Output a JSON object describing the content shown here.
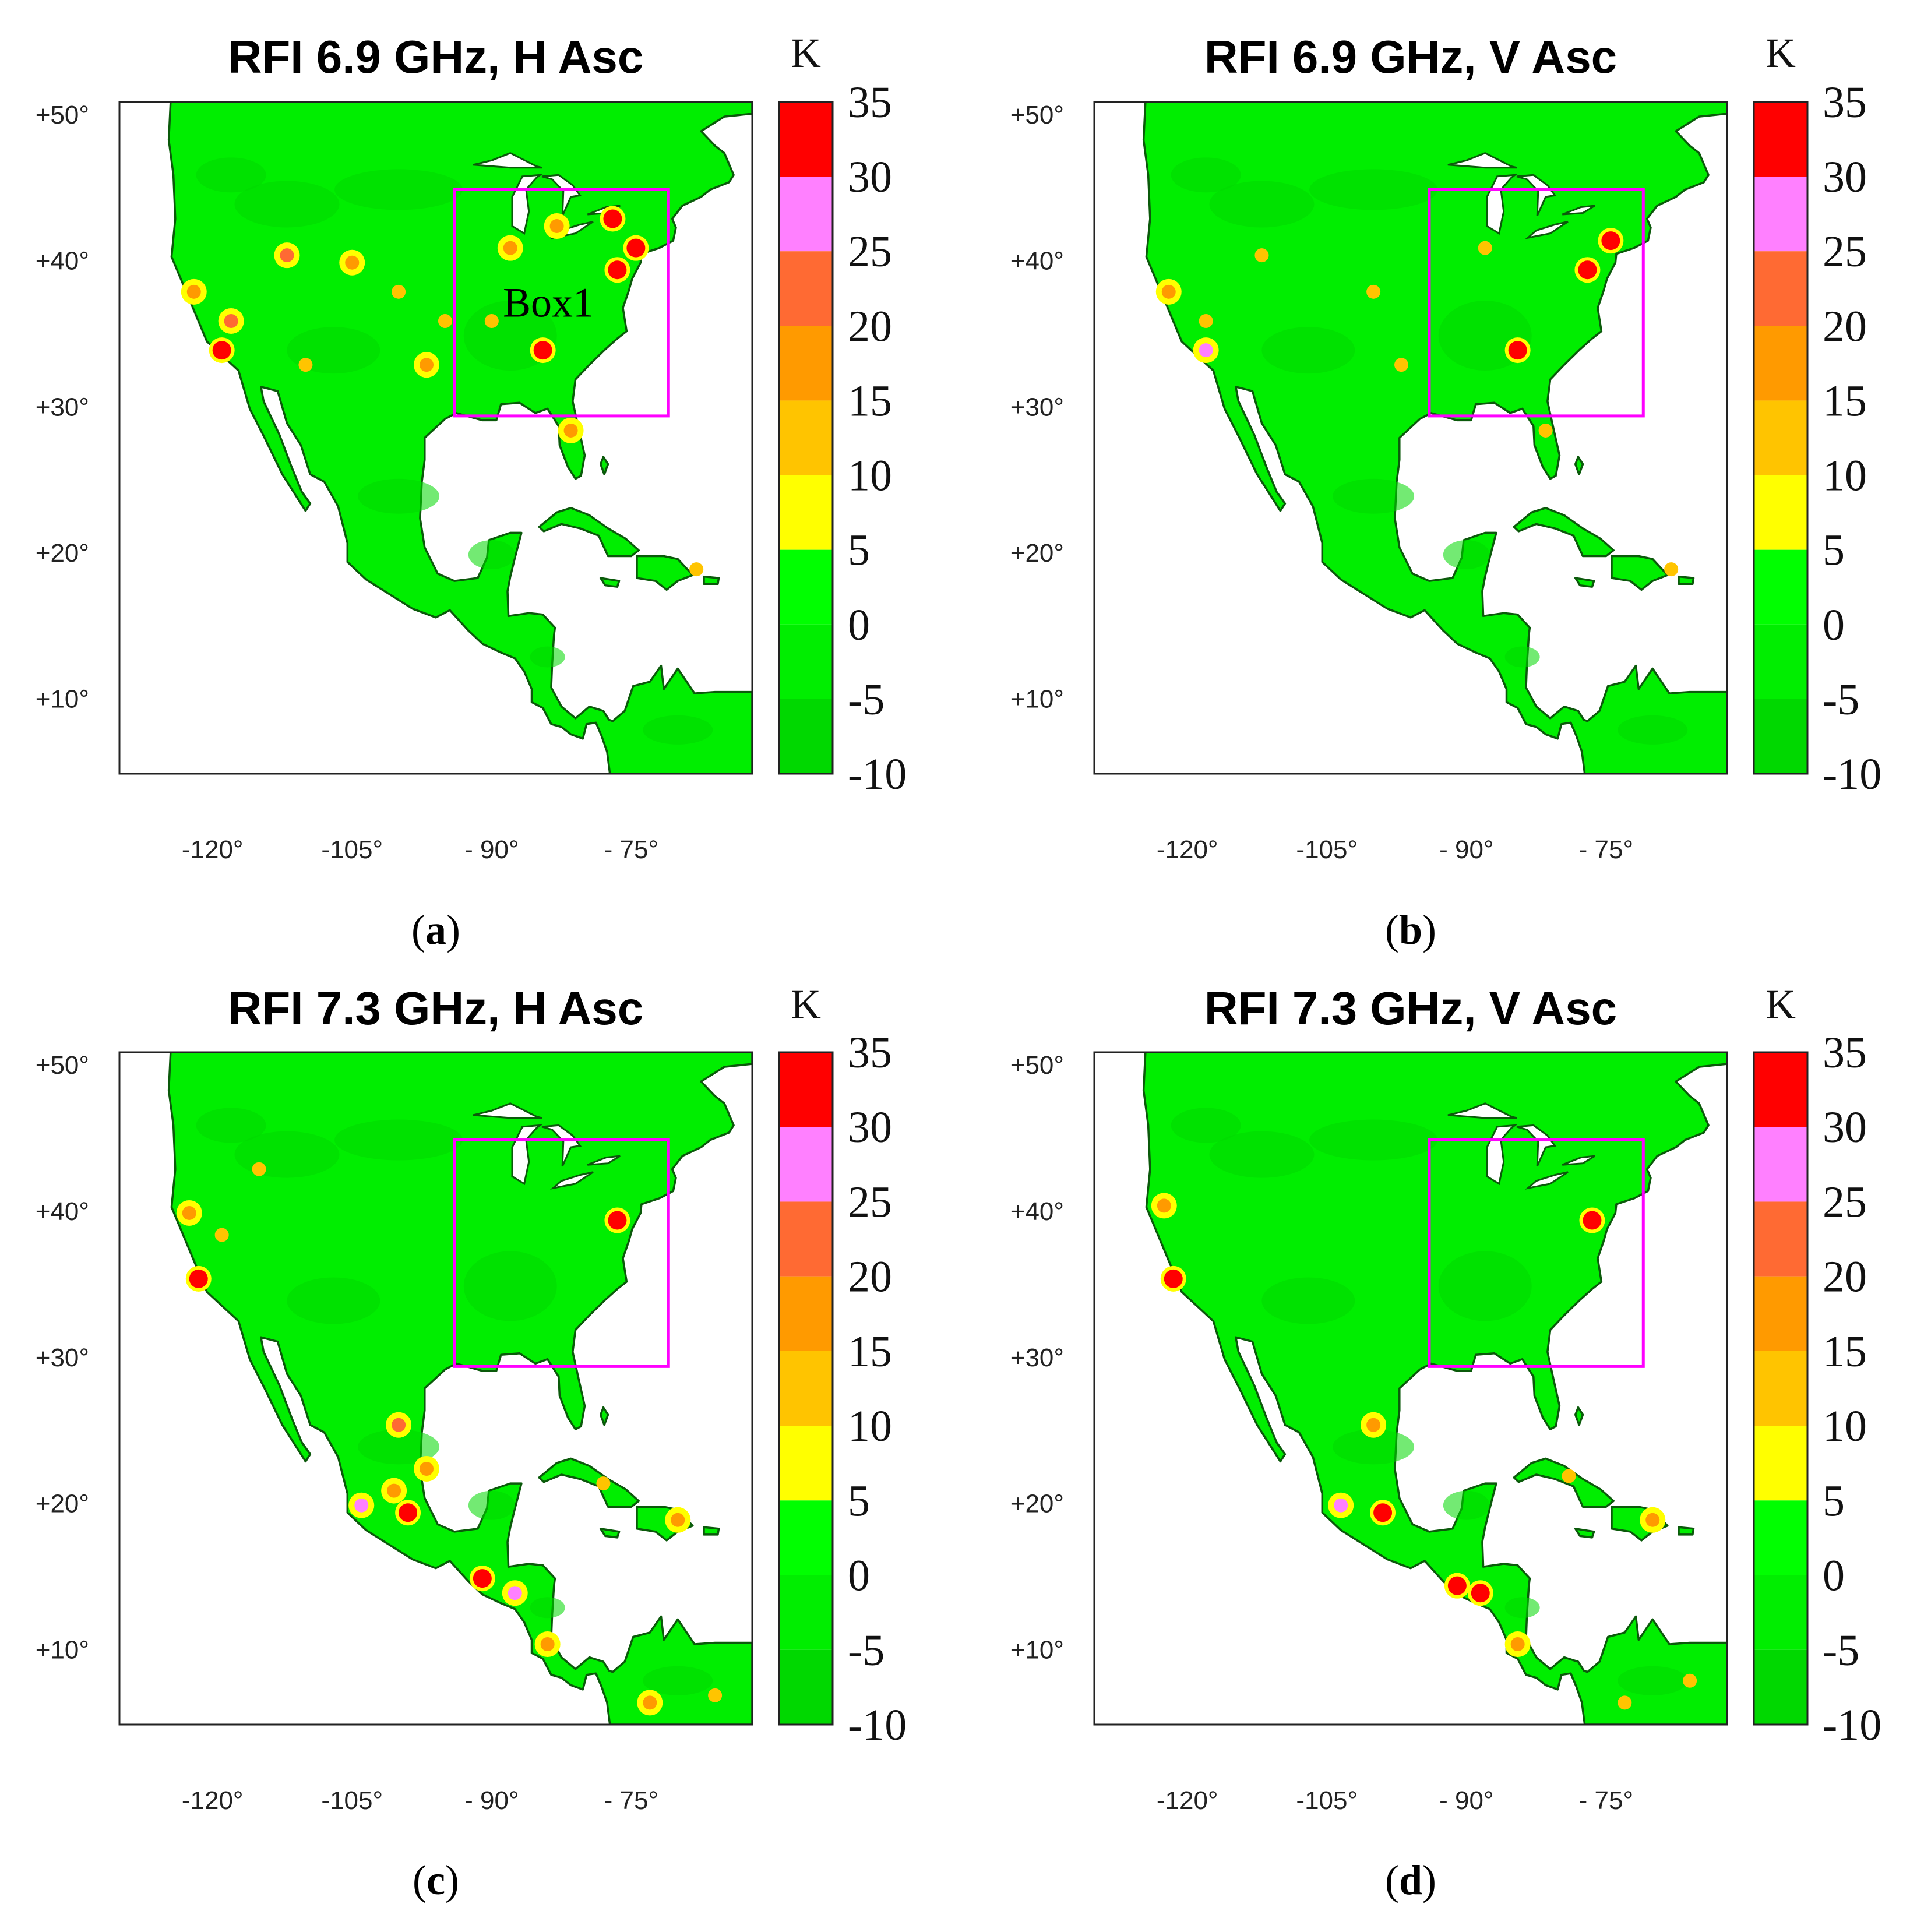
{
  "colorbar": {
    "unit": "K",
    "ticks": [
      35,
      30,
      25,
      20,
      15,
      10,
      5,
      0,
      -5,
      -10
    ],
    "tick_labels": [
      "35",
      "30",
      "25",
      "20",
      "15",
      "10",
      "5",
      "0",
      "-5",
      "-10"
    ],
    "bands": [
      {
        "from": 30,
        "to": 35,
        "color": "#ff0000"
      },
      {
        "from": 25,
        "to": 30,
        "color": "#ff80ff"
      },
      {
        "from": 20,
        "to": 25,
        "color": "#ff6a33"
      },
      {
        "from": 15,
        "to": 20,
        "color": "#ff9a00"
      },
      {
        "from": 10,
        "to": 15,
        "color": "#ffc400"
      },
      {
        "from": 5,
        "to": 10,
        "color": "#ffff00"
      },
      {
        "from": 0,
        "to": 5,
        "color": "#00ff00"
      },
      {
        "from": -5,
        "to": 0,
        "color": "#00ee00"
      },
      {
        "from": -10,
        "to": -5,
        "color": "#00d800"
      }
    ]
  },
  "chart_data": [
    {
      "type": "heatmap",
      "title": "RFI 6.9 GHz, H Asc",
      "panel_label": "(a)",
      "panel_letter": "a",
      "xlabel": "",
      "ylabel": "",
      "xlim": [
        -130,
        -62
      ],
      "ylim": [
        5,
        51
      ],
      "x_ticks": [
        -120,
        -105,
        -90,
        -75
      ],
      "x_tick_labels": [
        "-120°",
        "-105°",
        "- 90°",
        "- 75°"
      ],
      "y_ticks": [
        50,
        40,
        30,
        20,
        10
      ],
      "y_tick_labels": [
        "+50°",
        "+40°",
        "+30°",
        "+20°",
        "+10°"
      ],
      "box": {
        "lon": [
          -94,
          -71
        ],
        "lat": [
          29.5,
          45
        ],
        "label": "Box1"
      },
      "hotspots": [
        {
          "lon": -77,
          "lat": 43,
          "value": 33
        },
        {
          "lon": -74.5,
          "lat": 41,
          "value": 33
        },
        {
          "lon": -76.5,
          "lat": 39.5,
          "value": 33
        },
        {
          "lon": -84.5,
          "lat": 34,
          "value": 32
        },
        {
          "lon": -119,
          "lat": 34,
          "value": 32
        },
        {
          "lon": -122,
          "lat": 38,
          "value": 18
        },
        {
          "lon": -118,
          "lat": 36,
          "value": 22
        },
        {
          "lon": -112,
          "lat": 40.5,
          "value": 22
        },
        {
          "lon": -105,
          "lat": 40,
          "value": 18
        },
        {
          "lon": -97,
          "lat": 33,
          "value": 16
        },
        {
          "lon": -88,
          "lat": 41,
          "value": 18
        },
        {
          "lon": -83,
          "lat": 42.5,
          "value": 18
        },
        {
          "lon": -81.5,
          "lat": 28.5,
          "value": 16
        },
        {
          "lon": -90,
          "lat": 36,
          "value": 10
        },
        {
          "lon": -95,
          "lat": 36,
          "value": 10
        },
        {
          "lon": -100,
          "lat": 38,
          "value": 10
        },
        {
          "lon": -110,
          "lat": 33,
          "value": 10
        },
        {
          "lon": -68,
          "lat": 19,
          "value": 12
        }
      ]
    },
    {
      "type": "heatmap",
      "title": "RFI 6.9 GHz, V Asc",
      "panel_label": "(b)",
      "panel_letter": "b",
      "xlabel": "",
      "ylabel": "",
      "xlim": [
        -130,
        -62
      ],
      "ylim": [
        5,
        51
      ],
      "x_ticks": [
        -120,
        -105,
        -90,
        -75
      ],
      "x_tick_labels": [
        "-120°",
        "-105°",
        "- 90°",
        "- 75°"
      ],
      "y_ticks": [
        50,
        40,
        30,
        20,
        10
      ],
      "y_tick_labels": [
        "+50°",
        "+40°",
        "+30°",
        "+20°",
        "+10°"
      ],
      "box": {
        "lon": [
          -94,
          -71
        ],
        "lat": [
          29.5,
          45
        ]
      },
      "hotspots": [
        {
          "lon": -74.5,
          "lat": 41.5,
          "value": 33
        },
        {
          "lon": -77,
          "lat": 39.5,
          "value": 33
        },
        {
          "lon": -84.5,
          "lat": 34,
          "value": 32
        },
        {
          "lon": -118,
          "lat": 34,
          "value": 26
        },
        {
          "lon": -122,
          "lat": 38,
          "value": 18
        },
        {
          "lon": -118,
          "lat": 36,
          "value": 12
        },
        {
          "lon": -112,
          "lat": 40.5,
          "value": 12
        },
        {
          "lon": -97,
          "lat": 33,
          "value": 12
        },
        {
          "lon": -88,
          "lat": 41,
          "value": 12
        },
        {
          "lon": -81.5,
          "lat": 28.5,
          "value": 12
        },
        {
          "lon": -100,
          "lat": 38,
          "value": 10
        },
        {
          "lon": -68,
          "lat": 19,
          "value": 12
        }
      ]
    },
    {
      "type": "heatmap",
      "title": "RFI 7.3 GHz, H Asc",
      "panel_label": "(c)",
      "panel_letter": "c",
      "xlabel": "",
      "ylabel": "",
      "xlim": [
        -130,
        -62
      ],
      "ylim": [
        5,
        51
      ],
      "x_ticks": [
        -120,
        -105,
        -90,
        -75
      ],
      "x_tick_labels": [
        "-120°",
        "-105°",
        "- 90°",
        "- 75°"
      ],
      "y_ticks": [
        50,
        40,
        30,
        20,
        10
      ],
      "y_tick_labels": [
        "+50°",
        "+40°",
        "+30°",
        "+20°",
        "+10°"
      ],
      "box": {
        "lon": [
          -94,
          -71
        ],
        "lat": [
          29.5,
          45
        ]
      },
      "hotspots": [
        {
          "lon": -121.5,
          "lat": 35.5,
          "value": 33
        },
        {
          "lon": -119,
          "lat": 38.5,
          "value": 10
        },
        {
          "lon": -122.5,
          "lat": 40,
          "value": 15
        },
        {
          "lon": -115,
          "lat": 43,
          "value": 12
        },
        {
          "lon": -104,
          "lat": 20,
          "value": 28
        },
        {
          "lon": -99,
          "lat": 19.5,
          "value": 30
        },
        {
          "lon": -100.5,
          "lat": 21,
          "value": 16
        },
        {
          "lon": -91,
          "lat": 15,
          "value": 33
        },
        {
          "lon": -87.5,
          "lat": 14,
          "value": 25
        },
        {
          "lon": -84,
          "lat": 10.5,
          "value": 16
        },
        {
          "lon": -76.5,
          "lat": 39.5,
          "value": 30
        },
        {
          "lon": -100,
          "lat": 25.5,
          "value": 20
        },
        {
          "lon": -97,
          "lat": 22.5,
          "value": 16
        },
        {
          "lon": -70,
          "lat": 19,
          "value": 16
        },
        {
          "lon": -78,
          "lat": 21.5,
          "value": 12
        },
        {
          "lon": -73,
          "lat": 6.5,
          "value": 16
        },
        {
          "lon": -66,
          "lat": 7,
          "value": 12
        }
      ]
    },
    {
      "type": "heatmap",
      "title": "RFI 7.3 GHz, V Asc",
      "panel_label": "(d)",
      "panel_letter": "d",
      "xlabel": "",
      "ylabel": "",
      "xlim": [
        -130,
        -62
      ],
      "ylim": [
        5,
        51
      ],
      "x_ticks": [
        -120,
        -105,
        -90,
        -75
      ],
      "x_tick_labels": [
        "-120°",
        "-105°",
        "- 90°",
        "- 75°"
      ],
      "y_ticks": [
        50,
        40,
        30,
        20,
        10
      ],
      "y_tick_labels": [
        "+50°",
        "+40°",
        "+30°",
        "+20°",
        "+10°"
      ],
      "box": {
        "lon": [
          -94,
          -71
        ],
        "lat": [
          29.5,
          45
        ]
      },
      "hotspots": [
        {
          "lon": -121.5,
          "lat": 35.5,
          "value": 33
        },
        {
          "lon": -122.5,
          "lat": 40.5,
          "value": 15
        },
        {
          "lon": -103.5,
          "lat": 20,
          "value": 26
        },
        {
          "lon": -99,
          "lat": 19.5,
          "value": 30
        },
        {
          "lon": -91,
          "lat": 14.5,
          "value": 34
        },
        {
          "lon": -88.5,
          "lat": 14,
          "value": 30
        },
        {
          "lon": -84.5,
          "lat": 10.5,
          "value": 18
        },
        {
          "lon": -76.5,
          "lat": 39.5,
          "value": 30
        },
        {
          "lon": -100,
          "lat": 25.5,
          "value": 16
        },
        {
          "lon": -70,
          "lat": 19,
          "value": 18
        },
        {
          "lon": -73,
          "lat": 6.5,
          "value": 14
        },
        {
          "lon": -66,
          "lat": 8,
          "value": 14
        },
        {
          "lon": -79,
          "lat": 22,
          "value": 12
        }
      ]
    }
  ]
}
